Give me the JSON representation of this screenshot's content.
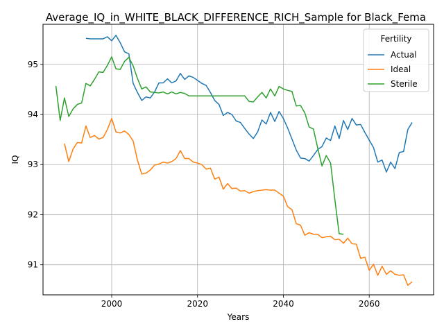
{
  "chart_data": {
    "type": "line",
    "title": "Average_IQ_in_WHITE_BLACK_DIFFERENCE_RICH_Sample for Black_Fema",
    "xlabel": "Years",
    "ylabel": "IQ",
    "xlim": [
      1984,
      2075
    ],
    "ylim": [
      90.4,
      95.8
    ],
    "x_ticks": [
      2000,
      2020,
      2040,
      2060
    ],
    "y_ticks": [
      91,
      92,
      93,
      94,
      95
    ],
    "grid": true,
    "legend": {
      "title": "Fertility",
      "position": "upper right"
    },
    "series": [
      {
        "name": "Actual",
        "color": "#1f77b4",
        "points": [
          [
            1994,
            95.52
          ],
          [
            1995,
            95.51
          ],
          [
            1996,
            95.51
          ],
          [
            1997,
            95.51
          ],
          [
            1998,
            95.51
          ],
          [
            1999,
            95.55
          ],
          [
            2000,
            95.47
          ],
          [
            2001,
            95.58
          ],
          [
            2002,
            95.43
          ],
          [
            2003,
            95.25
          ],
          [
            2004,
            95.21
          ],
          [
            2005,
            94.62
          ],
          [
            2006,
            94.44
          ],
          [
            2007,
            94.28
          ],
          [
            2008,
            94.35
          ],
          [
            2009,
            94.33
          ],
          [
            2010,
            94.45
          ],
          [
            2011,
            94.63
          ],
          [
            2012,
            94.63
          ],
          [
            2013,
            94.71
          ],
          [
            2014,
            94.63
          ],
          [
            2015,
            94.67
          ],
          [
            2016,
            94.82
          ],
          [
            2017,
            94.7
          ],
          [
            2018,
            94.77
          ],
          [
            2019,
            94.74
          ],
          [
            2020,
            94.68
          ],
          [
            2021,
            94.62
          ],
          [
            2022,
            94.58
          ],
          [
            2023,
            94.44
          ],
          [
            2024,
            94.28
          ],
          [
            2025,
            94.2
          ],
          [
            2026,
            93.98
          ],
          [
            2027,
            94.04
          ],
          [
            2028,
            94.0
          ],
          [
            2029,
            93.87
          ],
          [
            2030,
            93.84
          ],
          [
            2031,
            93.72
          ],
          [
            2032,
            93.61
          ],
          [
            2033,
            93.52
          ],
          [
            2034,
            93.65
          ],
          [
            2035,
            93.89
          ],
          [
            2036,
            93.81
          ],
          [
            2037,
            94.04
          ],
          [
            2038,
            93.86
          ],
          [
            2039,
            94.06
          ],
          [
            2040,
            93.92
          ],
          [
            2041,
            93.73
          ],
          [
            2042,
            93.51
          ],
          [
            2043,
            93.29
          ],
          [
            2044,
            93.13
          ],
          [
            2045,
            93.12
          ],
          [
            2046,
            93.07
          ],
          [
            2047,
            93.18
          ],
          [
            2048,
            93.3
          ],
          [
            2049,
            93.36
          ],
          [
            2050,
            93.53
          ],
          [
            2051,
            93.48
          ],
          [
            2052,
            93.77
          ],
          [
            2053,
            93.52
          ],
          [
            2054,
            93.88
          ],
          [
            2055,
            93.7
          ],
          [
            2056,
            93.92
          ],
          [
            2057,
            93.79
          ],
          [
            2058,
            93.8
          ],
          [
            2059,
            93.64
          ],
          [
            2060,
            93.49
          ],
          [
            2061,
            93.34
          ],
          [
            2062,
            93.05
          ],
          [
            2063,
            93.09
          ],
          [
            2064,
            92.85
          ],
          [
            2065,
            93.05
          ],
          [
            2066,
            92.92
          ],
          [
            2067,
            93.24
          ],
          [
            2068,
            93.26
          ],
          [
            2069,
            93.7
          ],
          [
            2070,
            93.84
          ]
        ]
      },
      {
        "name": "Ideal",
        "color": "#ff7f0e",
        "points": [
          [
            1989,
            93.42
          ],
          [
            1990,
            93.06
          ],
          [
            1991,
            93.31
          ],
          [
            1992,
            93.44
          ],
          [
            1993,
            93.43
          ],
          [
            1994,
            93.77
          ],
          [
            1995,
            93.54
          ],
          [
            1996,
            93.58
          ],
          [
            1997,
            93.51
          ],
          [
            1998,
            93.54
          ],
          [
            1999,
            93.7
          ],
          [
            2000,
            93.92
          ],
          [
            2001,
            93.65
          ],
          [
            2002,
            93.63
          ],
          [
            2003,
            93.67
          ],
          [
            2004,
            93.6
          ],
          [
            2005,
            93.47
          ],
          [
            2006,
            93.09
          ],
          [
            2007,
            92.81
          ],
          [
            2008,
            92.83
          ],
          [
            2009,
            92.89
          ],
          [
            2010,
            92.99
          ],
          [
            2011,
            93.01
          ],
          [
            2012,
            93.05
          ],
          [
            2013,
            93.03
          ],
          [
            2014,
            93.06
          ],
          [
            2015,
            93.12
          ],
          [
            2016,
            93.28
          ],
          [
            2017,
            93.12
          ],
          [
            2018,
            93.12
          ],
          [
            2019,
            93.05
          ],
          [
            2020,
            93.03
          ],
          [
            2021,
            93.0
          ],
          [
            2022,
            92.91
          ],
          [
            2023,
            92.93
          ],
          [
            2024,
            92.71
          ],
          [
            2025,
            92.75
          ],
          [
            2026,
            92.51
          ],
          [
            2027,
            92.62
          ],
          [
            2028,
            92.52
          ],
          [
            2029,
            92.53
          ],
          [
            2030,
            92.47
          ],
          [
            2031,
            92.48
          ],
          [
            2032,
            92.43
          ],
          [
            2033,
            92.46
          ],
          [
            2034,
            92.48
          ],
          [
            2035,
            92.49
          ],
          [
            2036,
            92.5
          ],
          [
            2037,
            92.49
          ],
          [
            2038,
            92.49
          ],
          [
            2039,
            92.43
          ],
          [
            2040,
            92.37
          ],
          [
            2041,
            92.16
          ],
          [
            2042,
            92.1
          ],
          [
            2043,
            91.82
          ],
          [
            2044,
            91.79
          ],
          [
            2045,
            91.59
          ],
          [
            2046,
            91.64
          ],
          [
            2047,
            91.61
          ],
          [
            2048,
            91.61
          ],
          [
            2049,
            91.54
          ],
          [
            2050,
            91.56
          ],
          [
            2051,
            91.57
          ],
          [
            2052,
            91.5
          ],
          [
            2053,
            91.51
          ],
          [
            2054,
            91.43
          ],
          [
            2055,
            91.53
          ],
          [
            2056,
            91.42
          ],
          [
            2057,
            91.41
          ],
          [
            2058,
            91.13
          ],
          [
            2059,
            91.15
          ],
          [
            2060,
            90.89
          ],
          [
            2061,
            91.01
          ],
          [
            2062,
            90.79
          ],
          [
            2063,
            90.97
          ],
          [
            2064,
            90.81
          ],
          [
            2065,
            90.88
          ],
          [
            2066,
            90.81
          ],
          [
            2067,
            90.79
          ],
          [
            2068,
            90.8
          ],
          [
            2069,
            90.59
          ],
          [
            2070,
            90.66
          ]
        ]
      },
      {
        "name": "Sterile",
        "color": "#2ca02c",
        "points": [
          [
            1987,
            94.57
          ],
          [
            1988,
            93.88
          ],
          [
            1989,
            94.33
          ],
          [
            1990,
            93.96
          ],
          [
            1991,
            94.11
          ],
          [
            1992,
            94.2
          ],
          [
            1993,
            94.23
          ],
          [
            1994,
            94.62
          ],
          [
            1995,
            94.57
          ],
          [
            1996,
            94.7
          ],
          [
            1997,
            94.85
          ],
          [
            1998,
            94.84
          ],
          [
            1999,
            94.98
          ],
          [
            2000,
            95.15
          ],
          [
            2001,
            94.91
          ],
          [
            2002,
            94.9
          ],
          [
            2003,
            95.06
          ],
          [
            2004,
            95.14
          ],
          [
            2005,
            94.97
          ],
          [
            2006,
            94.72
          ],
          [
            2007,
            94.51
          ],
          [
            2008,
            94.55
          ],
          [
            2009,
            94.45
          ],
          [
            2010,
            94.44
          ],
          [
            2011,
            94.43
          ],
          [
            2012,
            94.45
          ],
          [
            2013,
            94.41
          ],
          [
            2014,
            94.45
          ],
          [
            2015,
            94.41
          ],
          [
            2016,
            94.44
          ],
          [
            2017,
            94.42
          ],
          [
            2018,
            94.37
          ],
          [
            2019,
            94.37
          ],
          [
            2020,
            94.37
          ],
          [
            2021,
            94.37
          ],
          [
            2022,
            94.37
          ],
          [
            2023,
            94.37
          ],
          [
            2024,
            94.37
          ],
          [
            2025,
            94.37
          ],
          [
            2026,
            94.37
          ],
          [
            2027,
            94.37
          ],
          [
            2028,
            94.37
          ],
          [
            2029,
            94.37
          ],
          [
            2030,
            94.37
          ],
          [
            2031,
            94.37
          ],
          [
            2032,
            94.26
          ],
          [
            2033,
            94.25
          ],
          [
            2034,
            94.35
          ],
          [
            2035,
            94.44
          ],
          [
            2036,
            94.33
          ],
          [
            2037,
            94.51
          ],
          [
            2038,
            94.37
          ],
          [
            2039,
            94.56
          ],
          [
            2040,
            94.51
          ],
          [
            2041,
            94.48
          ],
          [
            2042,
            94.46
          ],
          [
            2043,
            94.17
          ],
          [
            2044,
            94.18
          ],
          [
            2045,
            94.03
          ],
          [
            2046,
            93.75
          ],
          [
            2047,
            93.71
          ],
          [
            2048,
            93.33
          ],
          [
            2049,
            92.97
          ],
          [
            2050,
            93.18
          ],
          [
            2051,
            93.03
          ],
          [
            2052,
            92.3
          ],
          [
            2053,
            91.62
          ],
          [
            2054,
            91.61
          ]
        ]
      }
    ]
  }
}
